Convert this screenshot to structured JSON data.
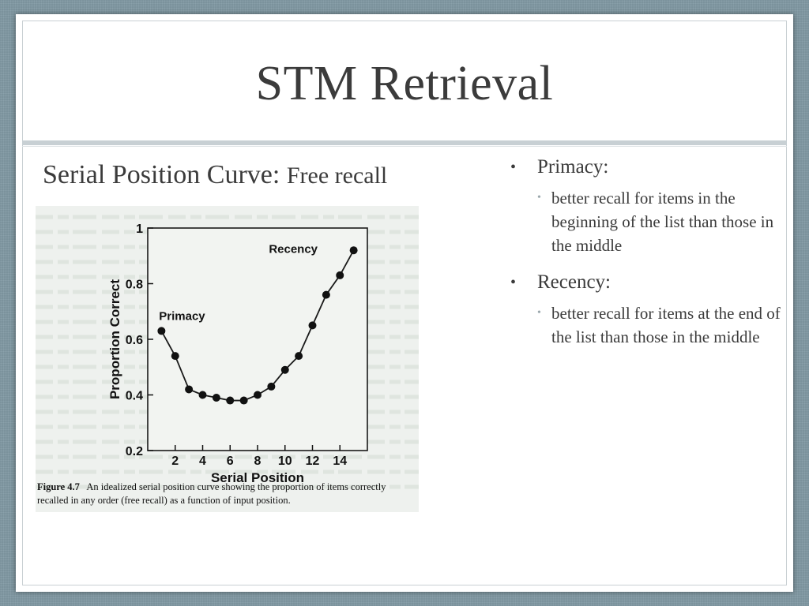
{
  "slide": {
    "title": "STM Retrieval",
    "subtitle_part1": "Serial Position Curve:",
    "subtitle_part2": "Free recall"
  },
  "bullets": [
    {
      "heading": "Primacy:",
      "detail": "better recall for items in the beginning of the list than those in the middle"
    },
    {
      "heading": "Recency:",
      "detail": "better recall for items at the end of the list than those in the middle"
    }
  ],
  "chart_data": {
    "type": "line",
    "xlabel": "Serial Position",
    "ylabel": "Proportion Correct",
    "xlim": [
      0,
      16
    ],
    "ylim": [
      0.2,
      1
    ],
    "x_ticks": [
      2,
      4,
      6,
      8,
      10,
      12,
      14
    ],
    "y_ticks": [
      0.2,
      0.4,
      0.6,
      0.8,
      1
    ],
    "y_tick_labels": [
      "0.2",
      "0.4",
      "0.6",
      "0.8",
      "1"
    ],
    "x": [
      1,
      2,
      3,
      4,
      5,
      6,
      7,
      8,
      9,
      10,
      11,
      12,
      13,
      14,
      15
    ],
    "y": [
      0.63,
      0.54,
      0.42,
      0.4,
      0.39,
      0.38,
      0.38,
      0.4,
      0.43,
      0.49,
      0.54,
      0.65,
      0.76,
      0.83,
      0.92
    ],
    "annotations": [
      {
        "text": "Primacy",
        "x": 2.5,
        "y": 0.67
      },
      {
        "text": "Recency",
        "x": 10.6,
        "y": 0.91
      }
    ],
    "caption_label": "Figure 4.7",
    "caption_text": "An idealized serial position curve showing the proportion of items correctly recalled in any order (free recall) as a function of input position."
  },
  "colors": {
    "background": "#7b929c",
    "slide": "#ffffff",
    "text": "#3b3b3b",
    "rule": "#c8d0d4"
  }
}
